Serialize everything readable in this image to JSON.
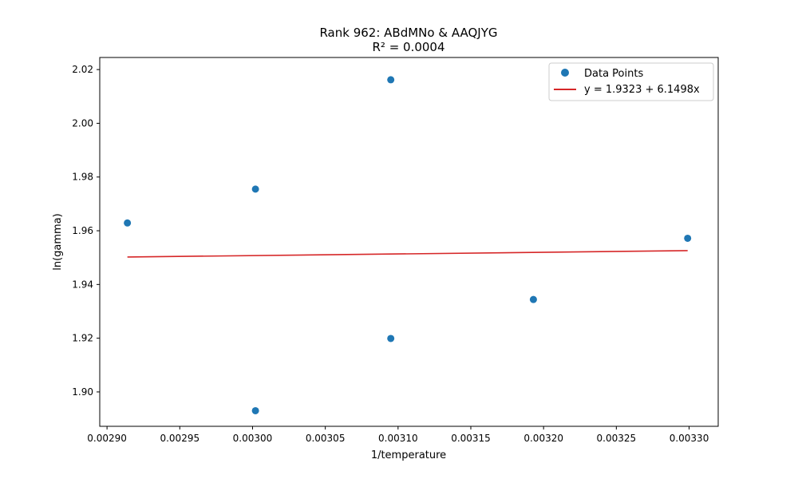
{
  "chart_data": {
    "type": "scatter",
    "title": "Rank 962: ABdMNo & AAQJYG",
    "subtitle": "R² = 0.0004",
    "xlabel": "1/temperature",
    "ylabel": "ln(gamma)",
    "xlim": [
      0.002895,
      0.00332
    ],
    "ylim": [
      1.8872,
      2.0245
    ],
    "x_ticks": [
      0.0029,
      0.00295,
      0.003,
      0.00305,
      0.0031,
      0.00315,
      0.0032,
      0.00325,
      0.0033
    ],
    "x_tick_labels": [
      "0.00290",
      "0.00295",
      "0.00300",
      "0.00305",
      "0.00310",
      "0.00315",
      "0.00320",
      "0.00325",
      "0.00330"
    ],
    "y_ticks": [
      1.9,
      1.92,
      1.94,
      1.96,
      1.98,
      2.0,
      2.02
    ],
    "y_tick_labels": [
      "1.90",
      "1.92",
      "1.94",
      "1.96",
      "1.98",
      "2.00",
      "2.02"
    ],
    "grid": false,
    "legend_position": "top-right",
    "series": [
      {
        "name": "Data Points",
        "kind": "scatter",
        "color": "#1f77b4",
        "points": [
          {
            "x": 0.002914,
            "y": 1.9629
          },
          {
            "x": 0.003002,
            "y": 1.9755
          },
          {
            "x": 0.003002,
            "y": 1.893
          },
          {
            "x": 0.003095,
            "y": 2.0162
          },
          {
            "x": 0.003095,
            "y": 1.9199
          },
          {
            "x": 0.003193,
            "y": 1.9344
          },
          {
            "x": 0.003299,
            "y": 1.9572
          }
        ]
      },
      {
        "name": "y = 1.9323 + 6.1498x",
        "kind": "line",
        "color": "#d62728",
        "intercept": 1.9323,
        "slope": 6.1498,
        "x_range": [
          0.002914,
          0.003299
        ]
      }
    ]
  }
}
